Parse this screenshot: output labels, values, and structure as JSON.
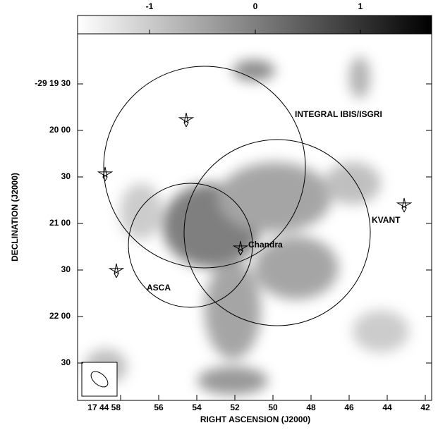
{
  "colorbar": {
    "ticks": [
      "-1",
      "0",
      "1"
    ]
  },
  "y_axis": {
    "label": "DECLINATION (J2000)",
    "ticks": [
      "-29 19 30",
      "20 00",
      "30",
      "21 00",
      "30",
      "22 00",
      "30"
    ]
  },
  "x_axis": {
    "label": "RIGHT ASCENSION (J2000)",
    "ticks": [
      "17 44 58",
      "56",
      "54",
      "52",
      "50",
      "48",
      "46",
      "44",
      "42"
    ]
  },
  "annotations": {
    "integral": "INTEGRAL IBIS/ISGRI",
    "kvant": "KVANT",
    "chandra": "Chandra",
    "asca": "ASCA"
  }
}
